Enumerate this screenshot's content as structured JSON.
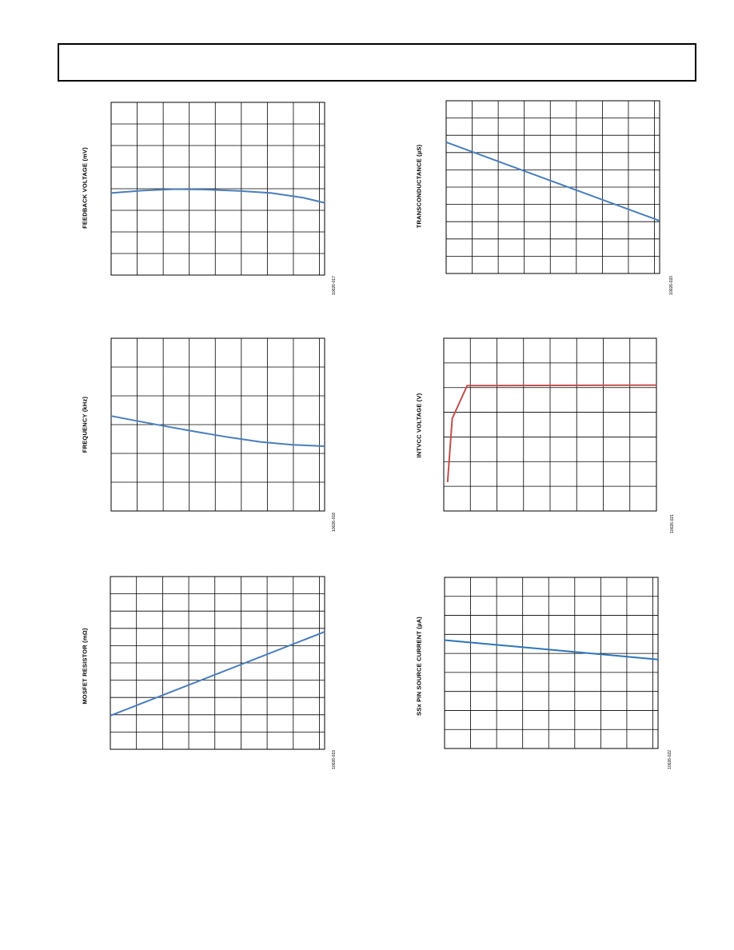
{
  "header": {},
  "chart_data": [
    {
      "type": "line",
      "ylabel": "FEEDBACK VOLTAGE (mV)",
      "figure_id": "10026-017",
      "x_divisions": 8.2,
      "y_divisions": 8,
      "xlim": [
        0,
        1
      ],
      "ylim": [
        0,
        8
      ],
      "series": [
        {
          "color": "#4a7ebb",
          "x": [
            0,
            0.15,
            0.3,
            0.45,
            0.6,
            0.75,
            0.9,
            1.0
          ],
          "y": [
            3.8,
            3.92,
            3.98,
            3.96,
            3.9,
            3.8,
            3.58,
            3.35
          ]
        }
      ]
    },
    {
      "type": "line",
      "ylabel": "TRANSCONDUCTANCE (µS)",
      "figure_id": "10026-020",
      "x_divisions": 8.2,
      "y_divisions": 10,
      "xlim": [
        0,
        1
      ],
      "ylim": [
        0,
        10
      ],
      "series": [
        {
          "color": "#4a7ebb",
          "x": [
            0,
            1.0
          ],
          "y": [
            7.6,
            3.05
          ]
        }
      ]
    },
    {
      "type": "line",
      "ylabel": "FREQUENCY (kHz)",
      "figure_id": "10026-018",
      "x_divisions": 8.2,
      "y_divisions": 6,
      "xlim": [
        0,
        1
      ],
      "ylim": [
        0,
        6
      ],
      "series": [
        {
          "color": "#4a7ebb",
          "x": [
            0,
            0.12,
            0.25,
            0.4,
            0.55,
            0.7,
            0.85,
            1.0
          ],
          "y": [
            3.3,
            3.13,
            2.95,
            2.75,
            2.56,
            2.4,
            2.3,
            2.25
          ]
        }
      ]
    },
    {
      "type": "line",
      "ylabel": "INTVCC VOLTAGE (V)",
      "figure_id": "10026-021",
      "x_divisions": 8,
      "y_divisions": 7,
      "xlim": [
        0,
        1
      ],
      "ylim": [
        0,
        7
      ],
      "series": [
        {
          "color": "#c0504d",
          "x": [
            0.018,
            0.04,
            0.11,
            1.0
          ],
          "y": [
            1.17,
            3.75,
            5.08,
            5.1
          ]
        }
      ]
    },
    {
      "type": "line",
      "ylabel": "MOSFET RESISTOR (mΩ)",
      "figure_id": "10026-019",
      "x_divisions": 8.2,
      "y_divisions": 10,
      "xlim": [
        0,
        1
      ],
      "ylim": [
        0,
        10
      ],
      "series": [
        {
          "color": "#4a7ebb",
          "x": [
            0,
            1.0
          ],
          "y": [
            1.95,
            6.8
          ]
        }
      ]
    },
    {
      "type": "line",
      "ylabel": "SSx PIN SOURCE CURRENT (µA)",
      "figure_id": "10026-022",
      "x_divisions": 8.2,
      "y_divisions": 9,
      "xlim": [
        0,
        1
      ],
      "ylim": [
        0,
        9
      ],
      "series": [
        {
          "color": "#2e75b6",
          "x": [
            0,
            1.0
          ],
          "y": [
            5.7,
            4.68
          ]
        }
      ]
    }
  ]
}
